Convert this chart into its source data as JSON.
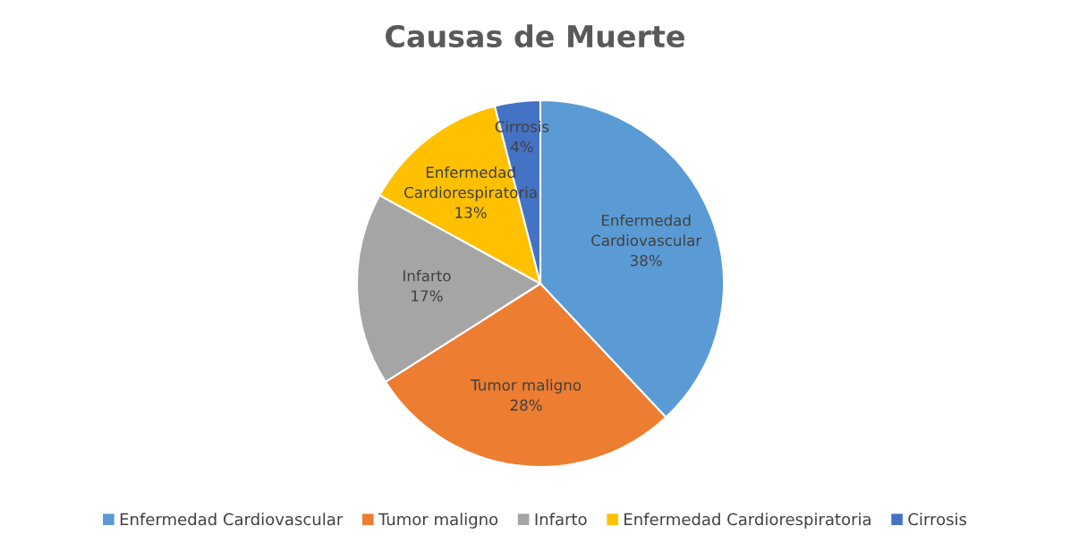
{
  "chart_data": {
    "type": "pie",
    "title": "Causas de Muerte",
    "categories": [
      "Enfermedad Cardiovascular",
      "Tumor maligno",
      "Infarto",
      "Enfermedad Cardiorespiratoria",
      "Cirrosis"
    ],
    "values": [
      38,
      28,
      17,
      13,
      4
    ],
    "colors": [
      "#5b9bd5",
      "#ed7d31",
      "#a5a5a5",
      "#ffc000",
      "#4472c4"
    ],
    "value_labels": [
      "38%",
      "28%",
      "17%",
      "13%",
      "4%"
    ],
    "legend": "bottom"
  }
}
